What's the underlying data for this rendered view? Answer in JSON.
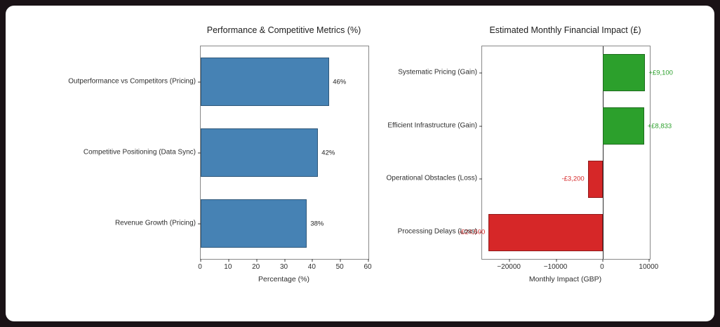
{
  "chart_data": [
    {
      "type": "bar",
      "orientation": "horizontal",
      "title": "Performance & Competitive Metrics (%)",
      "categories": [
        "Outperformance vs Competitors (Pricing)",
        "Competitive Positioning (Data Sync)",
        "Revenue Growth (Pricing)"
      ],
      "values": [
        46,
        42,
        38
      ],
      "value_labels": [
        "46%",
        "42%",
        "38%"
      ],
      "bar_color": "#4682b4",
      "xlabel": "Percentage (%)",
      "xlim": [
        0,
        60
      ],
      "xticks": [
        0,
        10,
        20,
        30,
        40,
        50,
        60
      ],
      "xtick_labels": [
        "0",
        "10",
        "20",
        "30",
        "40",
        "50",
        "60"
      ],
      "grid": false,
      "legend": "none"
    },
    {
      "type": "bar",
      "orientation": "horizontal",
      "title": "Estimated Monthly Financial Impact (£)",
      "categories": [
        "Systematic Pricing (Gain)",
        "Efficient Infrastructure (Gain)",
        "Operational Obstacles (Loss)",
        "Processing Delays (Loss)"
      ],
      "values": [
        9100,
        8833,
        -3200,
        -24500
      ],
      "value_labels": [
        "+£9,100",
        "+£8,833",
        "-£3,200",
        "-£24,500"
      ],
      "bar_colors": [
        "#2ca02c",
        "#2ca02c",
        "#d62728",
        "#d62728"
      ],
      "value_label_colors": [
        "#2ca02c",
        "#2ca02c",
        "#d62728",
        "#d62728"
      ],
      "xlabel": "Monthly Impact (GBP)",
      "xlim": [
        -25900,
        10100
      ],
      "xticks": [
        -20000,
        -10000,
        0,
        10000
      ],
      "xtick_labels": [
        "−20000",
        "−10000",
        "0",
        "10000"
      ],
      "zero_line": true,
      "grid": false,
      "legend": "none"
    }
  ],
  "colors": {
    "frame_background": "#1a1216",
    "canvas_background": "#ffffff",
    "blue_bar": "#4682b4",
    "green_bar": "#2ca02c",
    "red_bar": "#d62728",
    "spine": "#888888"
  }
}
